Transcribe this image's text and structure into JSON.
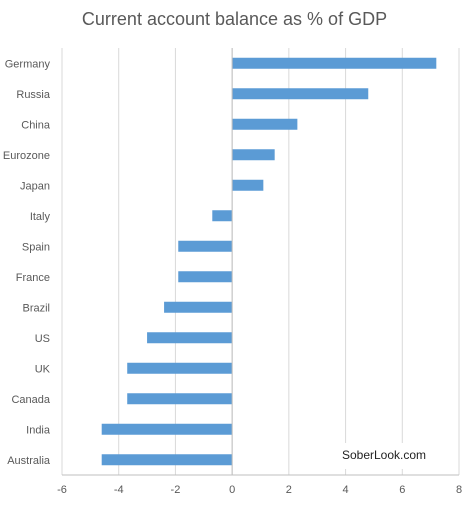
{
  "chart_data": {
    "type": "bar",
    "orientation": "horizontal",
    "title": "Current account balance as % of GDP",
    "categories": [
      "Germany",
      "Russia",
      "China",
      "Eurozone",
      "Japan",
      "Italy",
      "Spain",
      "France",
      "Brazil",
      "US",
      "UK",
      "Canada",
      "India",
      "Australia"
    ],
    "values": [
      7.2,
      4.8,
      2.3,
      1.5,
      1.1,
      -0.7,
      -1.9,
      -1.9,
      -2.4,
      -3.0,
      -3.7,
      -3.7,
      -4.6,
      -4.6
    ],
    "xlim": [
      -6,
      8
    ],
    "xticks": [
      -6,
      -4,
      -2,
      0,
      2,
      4,
      6,
      8
    ],
    "grid": true,
    "colors": {
      "bar": "#5b9bd5",
      "grid": "#d9d9d9",
      "axis": "#bfbfbf"
    },
    "annotations": [
      "SoberLook.com"
    ]
  }
}
